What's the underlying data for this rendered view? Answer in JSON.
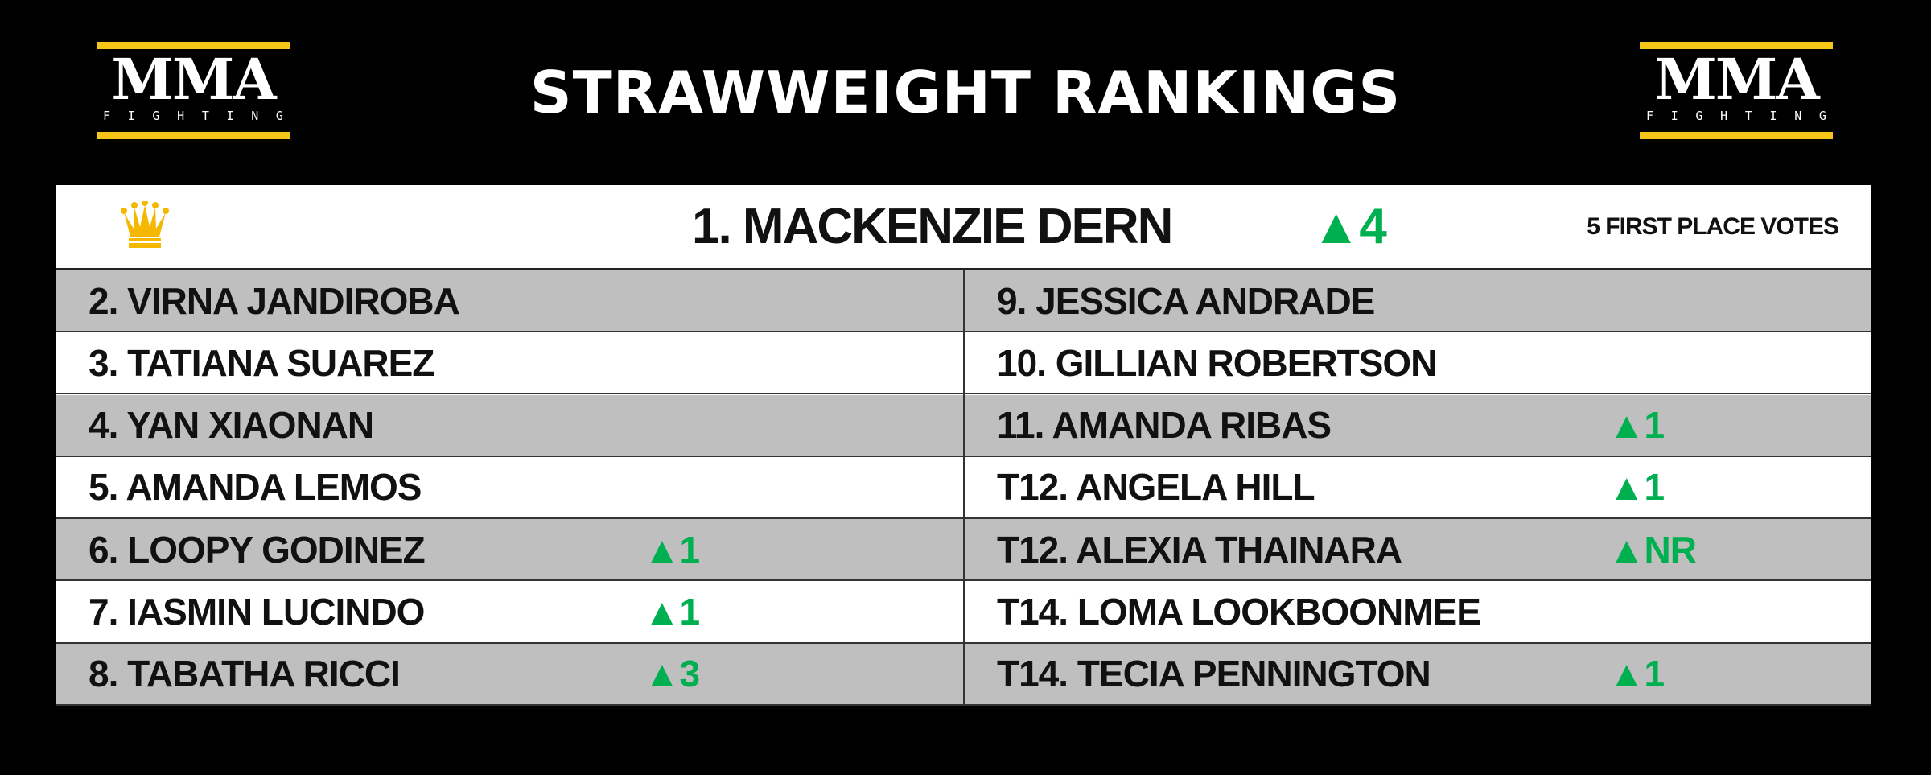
{
  "title": "STRAWWEIGHT RANKINGS",
  "logo": {
    "main": "MMA",
    "sub": [
      "F",
      "I",
      "G",
      "H",
      "T",
      "I",
      "N",
      "G"
    ]
  },
  "colors": {
    "logo_yellow": "#f5c518",
    "up_green": "#00b050",
    "row_gray": "#bfbfbf"
  },
  "champion": {
    "name": "1. MACKENZIE DERN",
    "movement": "▲4",
    "votes": "5 FIRST PLACE VOTES",
    "icon": "crown-icon"
  },
  "left": [
    {
      "name": "2. VIRNA JANDIROBA",
      "movement": ""
    },
    {
      "name": "3. TATIANA SUAREZ",
      "movement": ""
    },
    {
      "name": "4. YAN XIAONAN",
      "movement": ""
    },
    {
      "name": "5. AMANDA LEMOS",
      "movement": ""
    },
    {
      "name": "6. LOOPY GODINEZ",
      "movement": "▲1"
    },
    {
      "name": "7. IASMIN LUCINDO",
      "movement": "▲1"
    },
    {
      "name": "8. TABATHA RICCI",
      "movement": "▲3"
    }
  ],
  "right": [
    {
      "name": "9. JESSICA ANDRADE",
      "movement": ""
    },
    {
      "name": "10. GILLIAN ROBERTSON",
      "movement": ""
    },
    {
      "name": "11. AMANDA RIBAS",
      "movement": "▲1"
    },
    {
      "name": "T12. ANGELA HILL",
      "movement": "▲1"
    },
    {
      "name": "T12. ALEXIA THAINARA",
      "movement": "▲NR"
    },
    {
      "name": "T14. LOMA LOOKBOONMEE",
      "movement": ""
    },
    {
      "name": "T14. TECIA PENNINGTON",
      "movement": "▲1"
    }
  ]
}
